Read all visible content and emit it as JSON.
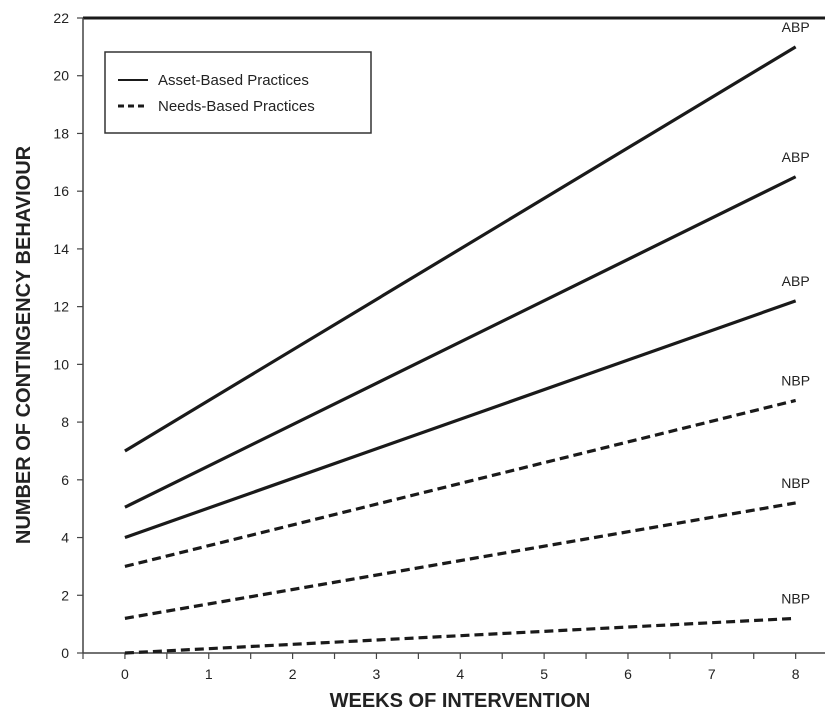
{
  "chart_data": {
    "type": "line",
    "xlabel": "WEEKS OF INTERVENTION",
    "ylabel": "NUMBER OF CONTINGENCY BEHAVIOUR",
    "xlim": [
      -0.5,
      8.35
    ],
    "ylim": [
      0,
      22
    ],
    "x_ticks": [
      0,
      1,
      2,
      3,
      4,
      5,
      6,
      7,
      8
    ],
    "y_ticks": [
      0,
      2,
      4,
      6,
      8,
      10,
      12,
      14,
      16,
      18,
      20,
      22
    ],
    "grid": false,
    "legend_position": "top-left",
    "legend": [
      {
        "label": "Asset-Based Practices",
        "style": "solid"
      },
      {
        "label": "Needs-Based Practices",
        "style": "dashed"
      }
    ],
    "series": [
      {
        "label": "ABP",
        "style": "solid",
        "x": [
          0,
          8
        ],
        "y": [
          7,
          21
        ]
      },
      {
        "label": "ABP",
        "style": "solid",
        "x": [
          0,
          8
        ],
        "y": [
          5.05,
          16.5
        ]
      },
      {
        "label": "ABP",
        "style": "solid",
        "x": [
          0,
          8
        ],
        "y": [
          4,
          12.2
        ]
      },
      {
        "label": "NBP",
        "style": "dashed",
        "x": [
          0,
          8
        ],
        "y": [
          3,
          8.75
        ]
      },
      {
        "label": "NBP",
        "style": "dashed",
        "x": [
          0,
          8
        ],
        "y": [
          1.2,
          5.2
        ]
      },
      {
        "label": "NBP",
        "style": "dashed",
        "x": [
          0,
          8
        ],
        "y": [
          0,
          1.2
        ]
      }
    ],
    "colors": {
      "line": "#1a1a1a",
      "axis": "#444444"
    }
  }
}
